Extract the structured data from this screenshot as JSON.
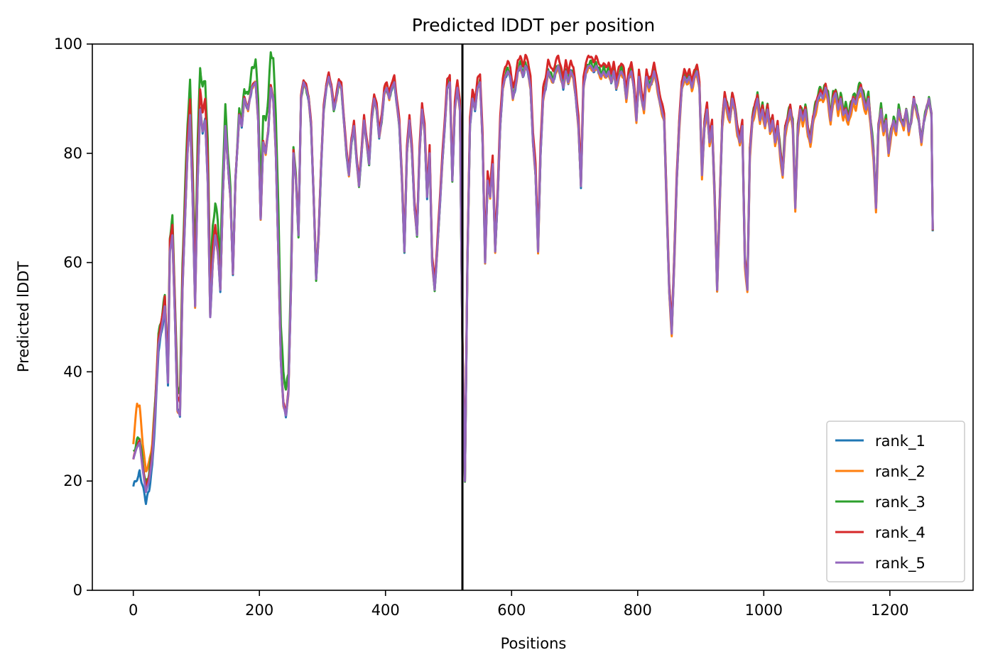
{
  "chart_data": {
    "type": "line",
    "title": "Predicted lDDT per position",
    "xlabel": "Positions",
    "ylabel": "Predicted lDDT",
    "xlim": [
      -65,
      1332
    ],
    "ylim": [
      0,
      100
    ],
    "xticks": [
      0,
      200,
      400,
      600,
      800,
      1000,
      1200
    ],
    "yticks": [
      0,
      20,
      40,
      60,
      80,
      100
    ],
    "xtick_labels": [
      "0",
      "200",
      "400",
      "600",
      "800",
      "1000",
      "1200"
    ],
    "ytick_labels": [
      "0",
      "20",
      "40",
      "60",
      "80",
      "100"
    ],
    "grid": false,
    "legend_position": "lower-right",
    "chain_break_x": 522,
    "series": [
      {
        "name": "rank_1",
        "color": "#1f77b4"
      },
      {
        "name": "rank_2",
        "color": "#ff7f0e"
      },
      {
        "name": "rank_3",
        "color": "#2ca02c"
      },
      {
        "name": "rank_4",
        "color": "#d62728"
      },
      {
        "name": "rank_5",
        "color": "#9467bd"
      }
    ],
    "base_profile": [
      [
        0,
        24
      ],
      [
        5,
        26
      ],
      [
        10,
        27
      ],
      [
        15,
        22
      ],
      [
        20,
        18
      ],
      [
        25,
        20
      ],
      [
        30,
        24
      ],
      [
        35,
        33
      ],
      [
        40,
        45
      ],
      [
        45,
        48
      ],
      [
        50,
        52
      ],
      [
        55,
        38
      ],
      [
        58,
        62
      ],
      [
        62,
        65
      ],
      [
        66,
        50
      ],
      [
        70,
        33
      ],
      [
        74,
        32
      ],
      [
        78,
        55
      ],
      [
        82,
        68
      ],
      [
        86,
        80
      ],
      [
        90,
        87
      ],
      [
        94,
        72
      ],
      [
        98,
        52
      ],
      [
        102,
        75
      ],
      [
        106,
        88
      ],
      [
        110,
        84
      ],
      [
        114,
        86
      ],
      [
        118,
        75
      ],
      [
        122,
        50
      ],
      [
        126,
        60
      ],
      [
        130,
        65
      ],
      [
        134,
        62
      ],
      [
        138,
        55
      ],
      [
        142,
        72
      ],
      [
        146,
        85
      ],
      [
        150,
        78
      ],
      [
        154,
        72
      ],
      [
        158,
        58
      ],
      [
        162,
        75
      ],
      [
        168,
        87
      ],
      [
        172,
        85
      ],
      [
        176,
        90
      ],
      [
        182,
        88
      ],
      [
        188,
        92
      ],
      [
        194,
        93
      ],
      [
        198,
        86
      ],
      [
        202,
        68
      ],
      [
        206,
        82
      ],
      [
        210,
        80
      ],
      [
        214,
        84
      ],
      [
        218,
        92
      ],
      [
        222,
        90
      ],
      [
        226,
        80
      ],
      [
        230,
        62
      ],
      [
        234,
        42
      ],
      [
        238,
        34
      ],
      [
        242,
        32
      ],
      [
        246,
        36
      ],
      [
        250,
        55
      ],
      [
        254,
        80
      ],
      [
        258,
        75
      ],
      [
        262,
        65
      ],
      [
        266,
        90
      ],
      [
        270,
        93
      ],
      [
        274,
        92
      ],
      [
        278,
        90
      ],
      [
        282,
        85
      ],
      [
        286,
        72
      ],
      [
        290,
        57
      ],
      [
        294,
        65
      ],
      [
        298,
        78
      ],
      [
        302,
        88
      ],
      [
        306,
        92
      ],
      [
        310,
        94
      ],
      [
        314,
        92
      ],
      [
        318,
        88
      ],
      [
        322,
        90
      ],
      [
        326,
        93
      ],
      [
        330,
        92
      ],
      [
        334,
        86
      ],
      [
        338,
        80
      ],
      [
        342,
        76
      ],
      [
        346,
        82
      ],
      [
        350,
        85
      ],
      [
        354,
        79
      ],
      [
        358,
        74
      ],
      [
        362,
        80
      ],
      [
        366,
        86
      ],
      [
        370,
        82
      ],
      [
        374,
        78
      ],
      [
        378,
        86
      ],
      [
        382,
        90
      ],
      [
        386,
        88
      ],
      [
        390,
        83
      ],
      [
        394,
        86
      ],
      [
        398,
        91
      ],
      [
        402,
        92
      ],
      [
        406,
        90
      ],
      [
        410,
        92
      ],
      [
        414,
        93
      ],
      [
        418,
        89
      ],
      [
        422,
        85
      ],
      [
        426,
        75
      ],
      [
        430,
        62
      ],
      [
        434,
        80
      ],
      [
        438,
        86
      ],
      [
        442,
        80
      ],
      [
        446,
        70
      ],
      [
        450,
        65
      ],
      [
        454,
        80
      ],
      [
        458,
        88
      ],
      [
        462,
        84
      ],
      [
        466,
        72
      ],
      [
        470,
        80
      ],
      [
        474,
        60
      ],
      [
        478,
        55
      ],
      [
        482,
        62
      ],
      [
        486,
        70
      ],
      [
        490,
        78
      ],
      [
        494,
        85
      ],
      [
        498,
        92
      ],
      [
        502,
        93
      ],
      [
        506,
        75
      ],
      [
        510,
        88
      ],
      [
        514,
        92
      ],
      [
        518,
        88
      ],
      [
        522,
        45
      ],
      [
        526,
        20
      ],
      [
        530,
        60
      ],
      [
        534,
        85
      ],
      [
        538,
        90
      ],
      [
        542,
        88
      ],
      [
        546,
        92
      ],
      [
        550,
        93
      ],
      [
        554,
        82
      ],
      [
        558,
        60
      ],
      [
        562,
        75
      ],
      [
        566,
        72
      ],
      [
        570,
        78
      ],
      [
        574,
        62
      ],
      [
        578,
        72
      ],
      [
        582,
        85
      ],
      [
        586,
        92
      ],
      [
        590,
        94
      ],
      [
        594,
        95
      ],
      [
        598,
        94
      ],
      [
        602,
        90
      ],
      [
        606,
        92
      ],
      [
        610,
        95
      ],
      [
        614,
        96
      ],
      [
        618,
        94
      ],
      [
        622,
        96
      ],
      [
        626,
        95
      ],
      [
        630,
        92
      ],
      [
        634,
        82
      ],
      [
        638,
        76
      ],
      [
        642,
        62
      ],
      [
        646,
        80
      ],
      [
        650,
        90
      ],
      [
        654,
        92
      ],
      [
        658,
        95
      ],
      [
        662,
        94
      ],
      [
        666,
        93
      ],
      [
        670,
        95
      ],
      [
        674,
        96
      ],
      [
        678,
        94
      ],
      [
        682,
        92
      ],
      [
        686,
        95
      ],
      [
        690,
        93
      ],
      [
        694,
        95
      ],
      [
        698,
        94
      ],
      [
        702,
        90
      ],
      [
        706,
        85
      ],
      [
        710,
        74
      ],
      [
        714,
        92
      ],
      [
        718,
        95
      ],
      [
        722,
        96
      ],
      [
        726,
        96
      ],
      [
        730,
        95
      ],
      [
        734,
        96
      ],
      [
        738,
        95
      ],
      [
        742,
        94
      ],
      [
        746,
        95
      ],
      [
        750,
        94
      ],
      [
        754,
        95
      ],
      [
        758,
        93
      ],
      [
        762,
        95
      ],
      [
        766,
        92
      ],
      [
        770,
        94
      ],
      [
        774,
        95
      ],
      [
        778,
        94
      ],
      [
        782,
        90
      ],
      [
        786,
        94
      ],
      [
        790,
        95
      ],
      [
        794,
        92
      ],
      [
        798,
        86
      ],
      [
        802,
        94
      ],
      [
        806,
        90
      ],
      [
        810,
        88
      ],
      [
        814,
        94
      ],
      [
        818,
        92
      ],
      [
        822,
        93
      ],
      [
        826,
        95
      ],
      [
        830,
        93
      ],
      [
        834,
        90
      ],
      [
        838,
        88
      ],
      [
        842,
        86
      ],
      [
        846,
        70
      ],
      [
        850,
        55
      ],
      [
        854,
        47
      ],
      [
        858,
        60
      ],
      [
        862,
        75
      ],
      [
        866,
        85
      ],
      [
        870,
        92
      ],
      [
        874,
        94
      ],
      [
        878,
        93
      ],
      [
        882,
        94
      ],
      [
        886,
        92
      ],
      [
        890,
        94
      ],
      [
        894,
        95
      ],
      [
        898,
        92
      ],
      [
        902,
        76
      ],
      [
        906,
        85
      ],
      [
        910,
        88
      ],
      [
        914,
        82
      ],
      [
        918,
        85
      ],
      [
        922,
        72
      ],
      [
        926,
        55
      ],
      [
        930,
        70
      ],
      [
        934,
        85
      ],
      [
        938,
        90
      ],
      [
        942,
        88
      ],
      [
        946,
        86
      ],
      [
        950,
        90
      ],
      [
        954,
        88
      ],
      [
        958,
        84
      ],
      [
        962,
        82
      ],
      [
        966,
        85
      ],
      [
        970,
        60
      ],
      [
        974,
        55
      ],
      [
        978,
        80
      ],
      [
        982,
        86
      ],
      [
        986,
        88
      ],
      [
        990,
        90
      ],
      [
        994,
        86
      ],
      [
        998,
        88
      ],
      [
        1002,
        85
      ],
      [
        1006,
        88
      ],
      [
        1010,
        84
      ],
      [
        1014,
        86
      ],
      [
        1018,
        82
      ],
      [
        1022,
        85
      ],
      [
        1026,
        80
      ],
      [
        1030,
        76
      ],
      [
        1034,
        84
      ],
      [
        1038,
        86
      ],
      [
        1042,
        88
      ],
      [
        1046,
        85
      ],
      [
        1050,
        70
      ],
      [
        1054,
        84
      ],
      [
        1058,
        88
      ],
      [
        1062,
        86
      ],
      [
        1066,
        88
      ],
      [
        1070,
        84
      ],
      [
        1074,
        82
      ],
      [
        1078,
        86
      ],
      [
        1082,
        88
      ],
      [
        1086,
        90
      ],
      [
        1090,
        91
      ],
      [
        1094,
        90
      ],
      [
        1098,
        92
      ],
      [
        1102,
        90
      ],
      [
        1106,
        86
      ],
      [
        1110,
        90
      ],
      [
        1114,
        91
      ],
      [
        1118,
        88
      ],
      [
        1122,
        90
      ],
      [
        1126,
        87
      ],
      [
        1130,
        88
      ],
      [
        1134,
        86
      ],
      [
        1138,
        88
      ],
      [
        1142,
        90
      ],
      [
        1146,
        89
      ],
      [
        1150,
        91
      ],
      [
        1154,
        92
      ],
      [
        1158,
        90
      ],
      [
        1162,
        88
      ],
      [
        1166,
        90
      ],
      [
        1170,
        85
      ],
      [
        1174,
        80
      ],
      [
        1178,
        70
      ],
      [
        1182,
        85
      ],
      [
        1186,
        88
      ],
      [
        1190,
        84
      ],
      [
        1194,
        86
      ],
      [
        1198,
        80
      ],
      [
        1202,
        84
      ],
      [
        1206,
        86
      ],
      [
        1210,
        84
      ],
      [
        1214,
        88
      ],
      [
        1218,
        86
      ],
      [
        1222,
        85
      ],
      [
        1226,
        88
      ],
      [
        1230,
        84
      ],
      [
        1234,
        86
      ],
      [
        1238,
        90
      ],
      [
        1242,
        88
      ],
      [
        1246,
        86
      ],
      [
        1250,
        82
      ],
      [
        1254,
        86
      ],
      [
        1258,
        88
      ],
      [
        1262,
        90
      ],
      [
        1266,
        87
      ],
      [
        1268,
        66
      ]
    ],
    "series_offsets": [
      [
        [
          0,
          -5
        ],
        [
          8,
          -6
        ],
        [
          18,
          -2
        ],
        [
          60,
          0
        ],
        [
          540,
          0
        ],
        [
          1268,
          0
        ]
      ],
      [
        [
          0,
          3
        ],
        [
          6,
          8
        ],
        [
          18,
          4
        ],
        [
          60,
          0
        ],
        [
          560,
          0
        ],
        [
          1180,
          -1
        ],
        [
          1268,
          0
        ]
      ],
      [
        [
          0,
          1
        ],
        [
          50,
          2
        ],
        [
          110,
          8
        ],
        [
          140,
          5
        ],
        [
          160,
          0
        ],
        [
          230,
          8
        ],
        [
          260,
          0
        ],
        [
          1150,
          1
        ],
        [
          1268,
          0
        ]
      ],
      [
        [
          0,
          0
        ],
        [
          120,
          4
        ],
        [
          140,
          0
        ],
        [
          640,
          2
        ],
        [
          1268,
          0
        ]
      ],
      [
        [
          0,
          0
        ],
        [
          1268,
          0
        ]
      ]
    ]
  }
}
